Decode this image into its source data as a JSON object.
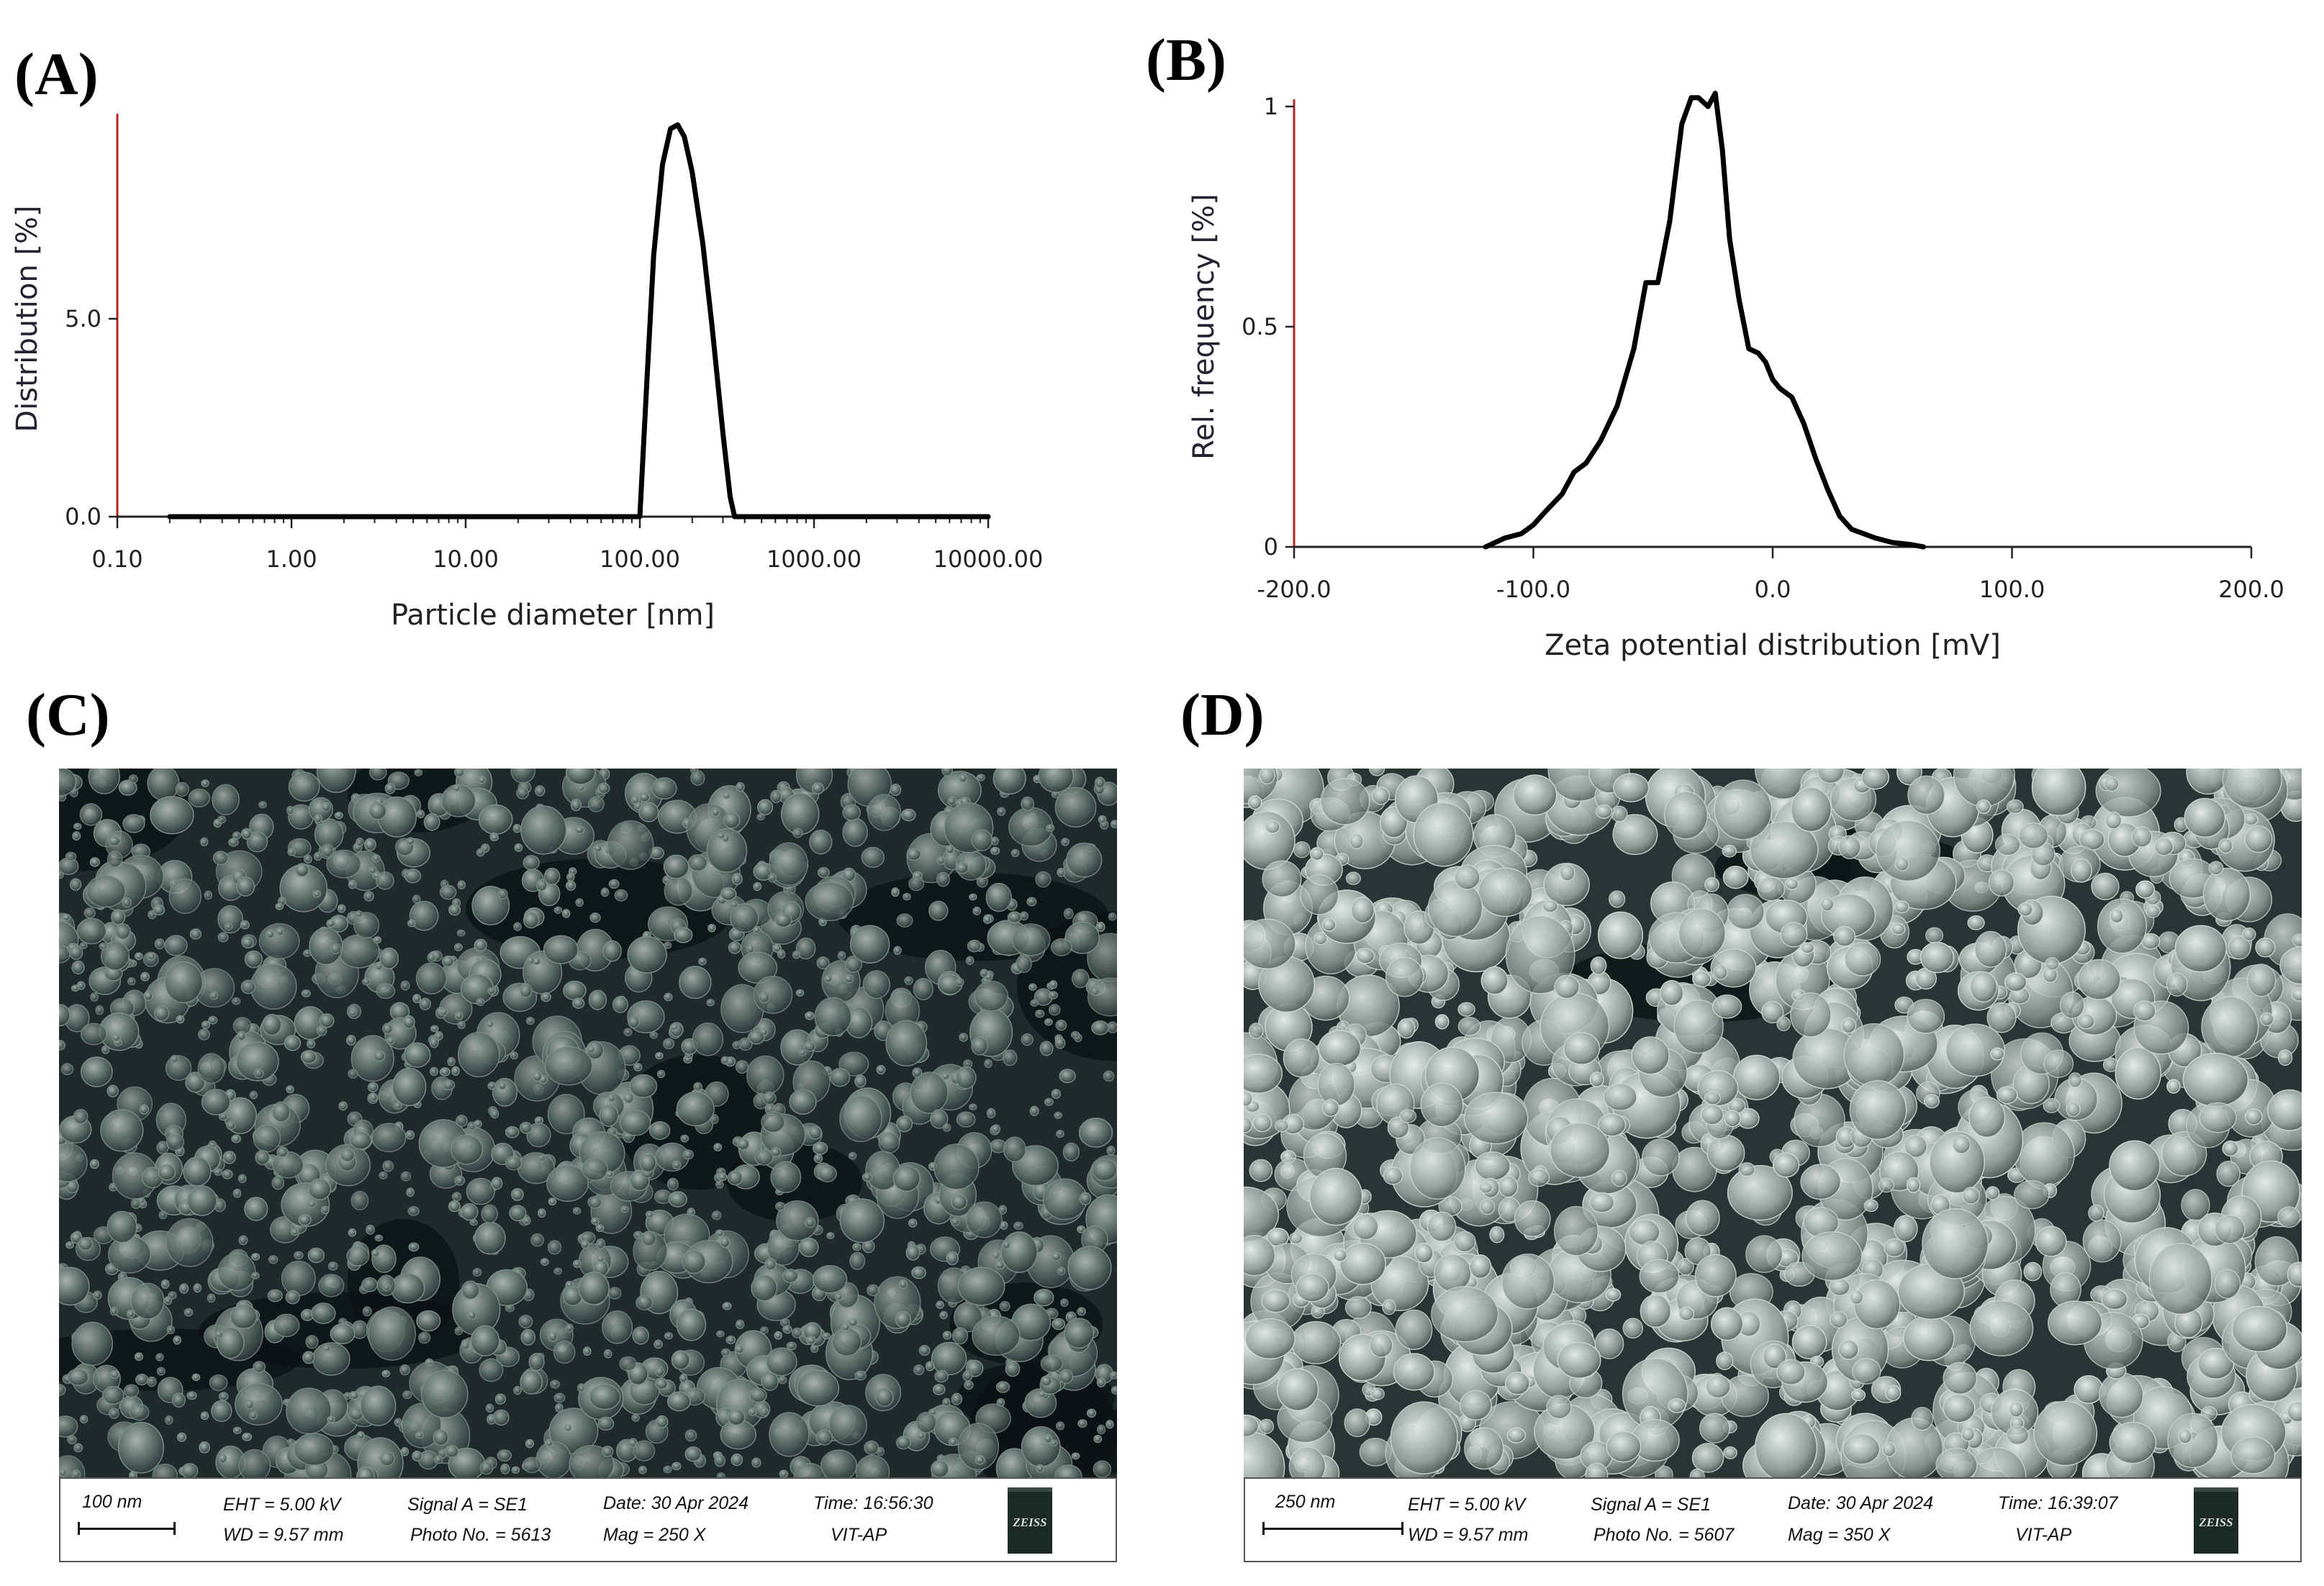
{
  "panels": {
    "a": {
      "letter": "(A)"
    },
    "b": {
      "letter": "(B)"
    },
    "c": {
      "letter": "(C)"
    },
    "d": {
      "letter": "(D)"
    }
  },
  "chart_data": [
    {
      "type": "line",
      "panel": "A",
      "xlabel": "Particle diameter [nm]",
      "ylabel": "Distribution [%]",
      "x_scale": "log",
      "xlim": [
        0.1,
        10000
      ],
      "ylim": [
        0,
        10
      ],
      "x_ticks": [
        0.1,
        1,
        10,
        100,
        1000,
        10000
      ],
      "x_tick_labels": [
        "0.10",
        "1.00",
        "10.00",
        "100.00",
        "1000.00",
        "10000.00"
      ],
      "y_ticks": [
        0,
        5
      ],
      "y_tick_labels": [
        "0.0",
        "5.0"
      ],
      "grid": false,
      "series": [
        {
          "x": [
            0.2,
            10,
            90,
            100,
            110,
            120,
            135,
            150,
            165,
            180,
            200,
            230,
            260,
            300,
            330,
            350,
            1000,
            10000
          ],
          "y": [
            0,
            0,
            0,
            0,
            3.5,
            6.6,
            8.9,
            9.8,
            9.9,
            9.6,
            8.7,
            6.9,
            4.8,
            2.1,
            0.5,
            0,
            0,
            0
          ]
        }
      ]
    },
    {
      "type": "line",
      "panel": "B",
      "xlabel": "Zeta potential distribution [mV]",
      "ylabel": "Rel. frequency [%]",
      "xlim": [
        -200,
        200
      ],
      "ylim": [
        0,
        1
      ],
      "x_ticks": [
        -200,
        -100,
        0,
        100,
        200
      ],
      "x_tick_labels": [
        "-200.0",
        "-100.0",
        "0.0",
        "100.0",
        "200.0"
      ],
      "y_ticks": [
        0,
        0.5,
        1
      ],
      "y_tick_labels": [
        "0",
        "0.5",
        "1"
      ],
      "grid": false,
      "series": [
        {
          "x": [
            -120,
            -112,
            -105,
            -100,
            -95,
            -88,
            -83,
            -78,
            -72,
            -65,
            -58,
            -53,
            -48,
            -43,
            -38,
            -34,
            -31,
            -27,
            -24,
            -21,
            -18,
            -14,
            -10,
            -6,
            -3,
            0,
            3,
            8,
            13,
            18,
            23,
            28,
            33,
            38,
            43,
            50,
            58,
            63
          ],
          "y": [
            0,
            0.02,
            0.03,
            0.05,
            0.08,
            0.12,
            0.17,
            0.19,
            0.24,
            0.32,
            0.45,
            0.6,
            0.6,
            0.74,
            0.96,
            1.02,
            1.02,
            1.0,
            1.03,
            0.9,
            0.7,
            0.56,
            0.45,
            0.44,
            0.42,
            0.38,
            0.36,
            0.34,
            0.28,
            0.2,
            0.13,
            0.07,
            0.04,
            0.03,
            0.02,
            0.01,
            0.005,
            0
          ]
        }
      ]
    }
  ],
  "sem": {
    "c": {
      "scale_label": "100 nm",
      "eht": "EHT =  5.00 kV",
      "wd": "WD = 9.57 mm",
      "signal": "Signal A = SE1",
      "photo": "Photo No. = 5613",
      "date": "Date: 30 Apr 2024",
      "mag": "Mag =   250 X",
      "time": "Time: 16:56:30",
      "site": "VIT-AP",
      "logo": "ZEISS"
    },
    "d": {
      "scale_label": "250 nm",
      "eht": "EHT =  5.00 kV",
      "wd": "WD = 9.57 mm",
      "signal": "Signal A = SE1",
      "photo": "Photo No. = 5607",
      "date": "Date: 30 Apr 2024",
      "mag": "Mag =   350 X",
      "time": "Time: 16:39:07",
      "site": "VIT-AP",
      "logo": "ZEISS"
    }
  },
  "colors": {
    "line": "#000000",
    "text": "#111111",
    "sem_bg": "#1c2426"
  }
}
